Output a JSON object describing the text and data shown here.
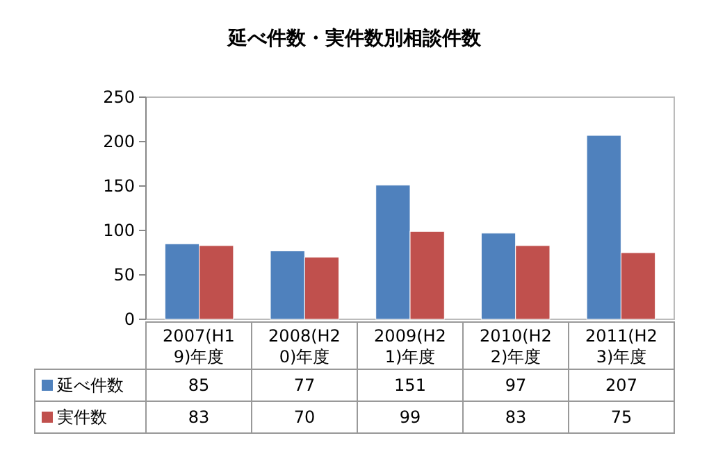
{
  "chart_data": {
    "type": "bar",
    "title": "延べ件数・実件数別相談件数",
    "categories": [
      "2007(H19)年度",
      "2008(H20)年度",
      "2009(H21)年度",
      "2010(H22)年度",
      "2011(H23)年度"
    ],
    "series": [
      {
        "name": "延べ件数",
        "color": "#4f81bd",
        "values": [
          85,
          77,
          151,
          97,
          207
        ]
      },
      {
        "name": "実件数",
        "color": "#c0504d",
        "values": [
          83,
          70,
          99,
          83,
          75
        ]
      }
    ],
    "ylim": [
      0,
      250
    ],
    "yticks": [
      0,
      50,
      100,
      150,
      200,
      250
    ],
    "grid": false,
    "data_labels": true,
    "legend": "bottom left"
  }
}
